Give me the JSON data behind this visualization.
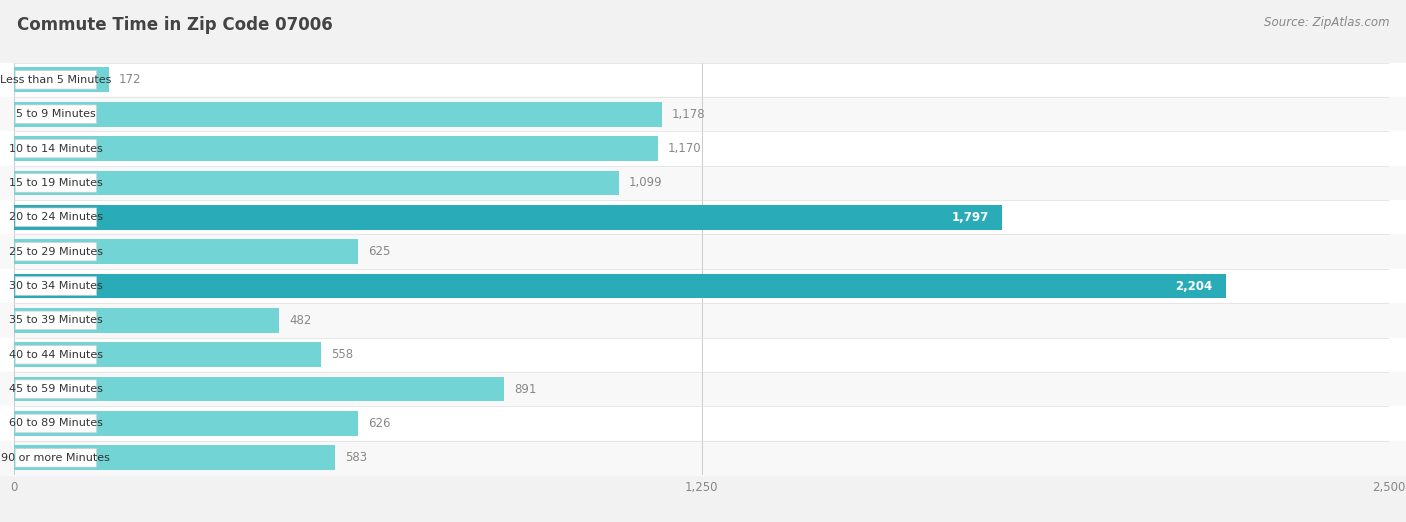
{
  "title": "Commute Time in Zip Code 07006",
  "source_text": "Source: ZipAtlas.com",
  "categories": [
    "Less than 5 Minutes",
    "5 to 9 Minutes",
    "10 to 14 Minutes",
    "15 to 19 Minutes",
    "20 to 24 Minutes",
    "25 to 29 Minutes",
    "30 to 34 Minutes",
    "35 to 39 Minutes",
    "40 to 44 Minutes",
    "45 to 59 Minutes",
    "60 to 89 Minutes",
    "90 or more Minutes"
  ],
  "values": [
    172,
    1178,
    1170,
    1099,
    1797,
    625,
    2204,
    482,
    558,
    891,
    626,
    583
  ],
  "highlight_indices": [
    4,
    6
  ],
  "bar_color_normal": "#72d4d4",
  "bar_color_highlight": "#2aacb8",
  "label_color_inside": "#ffffff",
  "label_color_outside": "#888888",
  "background_color": "#f2f2f2",
  "row_bg_even": "#ffffff",
  "row_bg_odd": "#f8f8f8",
  "xlim": [
    0,
    2500
  ],
  "xticks": [
    0,
    1250,
    2500
  ],
  "title_fontsize": 12,
  "source_fontsize": 8.5,
  "bar_label_fontsize": 8.5,
  "category_fontsize": 8,
  "tick_fontsize": 8.5,
  "title_color": "#444444",
  "source_color": "#888888",
  "category_label_bg": "#e8f8f8",
  "category_label_color": "#333333",
  "bar_height": 0.72
}
